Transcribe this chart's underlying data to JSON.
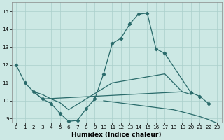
{
  "title": "",
  "xlabel": "Humidex (Indice chaleur)",
  "background_color": "#cce8e4",
  "grid_color": "#aacfcb",
  "line_color": "#2a6b6b",
  "xlim": [
    -0.5,
    23.5
  ],
  "ylim": [
    8.8,
    15.5
  ],
  "yticks": [
    9,
    10,
    11,
    12,
    13,
    14,
    15
  ],
  "xticks": [
    0,
    1,
    2,
    3,
    4,
    5,
    6,
    7,
    8,
    9,
    10,
    11,
    12,
    13,
    14,
    15,
    16,
    17,
    18,
    19,
    20,
    21,
    22,
    23
  ],
  "series1_x": [
    0,
    1,
    2,
    3,
    4,
    5,
    6,
    7,
    8,
    9,
    10,
    11,
    12,
    13,
    14,
    15,
    16,
    17,
    20,
    21,
    22
  ],
  "series1_y": [
    12.0,
    11.0,
    10.5,
    10.1,
    9.85,
    9.3,
    8.85,
    8.9,
    9.55,
    10.1,
    11.5,
    13.2,
    13.5,
    14.3,
    14.85,
    14.9,
    12.9,
    12.65,
    10.45,
    10.25,
    9.85
  ],
  "series2_x": [
    2,
    3,
    19
  ],
  "series2_y": [
    10.5,
    10.1,
    10.5
  ],
  "series3_x": [
    2,
    3,
    4,
    5,
    6,
    11,
    17,
    19,
    20
  ],
  "series3_y": [
    10.5,
    10.35,
    10.1,
    9.9,
    9.5,
    11.0,
    11.5,
    10.5,
    10.35
  ],
  "series4_x": [
    10,
    18,
    19,
    20,
    21,
    22,
    23
  ],
  "series4_y": [
    10.0,
    9.5,
    9.38,
    9.25,
    9.12,
    8.95,
    8.75
  ]
}
